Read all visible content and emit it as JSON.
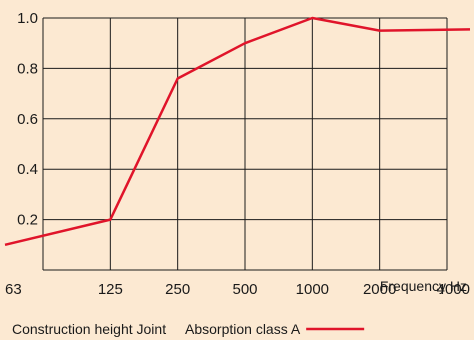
{
  "chart_data": {
    "type": "line",
    "categories": [
      "63",
      "125",
      "250",
      "500",
      "1000",
      "2000",
      "4000"
    ],
    "series": [
      {
        "name": "Absorption class A",
        "values": [
          0.1,
          0.2,
          0.76,
          0.9,
          1.0,
          0.95,
          0.955
        ]
      }
    ],
    "xlabel": "Frequency Hz",
    "ylabel": "",
    "ylim": [
      0,
      1.0
    ],
    "yticks": [
      "0.2",
      "0.4",
      "0.6",
      "0.8",
      "1.0"
    ],
    "grid": true,
    "legend_position": "bottom-right",
    "colors": {
      "series": "#e0142a",
      "grid": "#1a1a1a",
      "background": "#fce9d2"
    }
  },
  "footer": {
    "left_note": "Construction height Joint"
  }
}
